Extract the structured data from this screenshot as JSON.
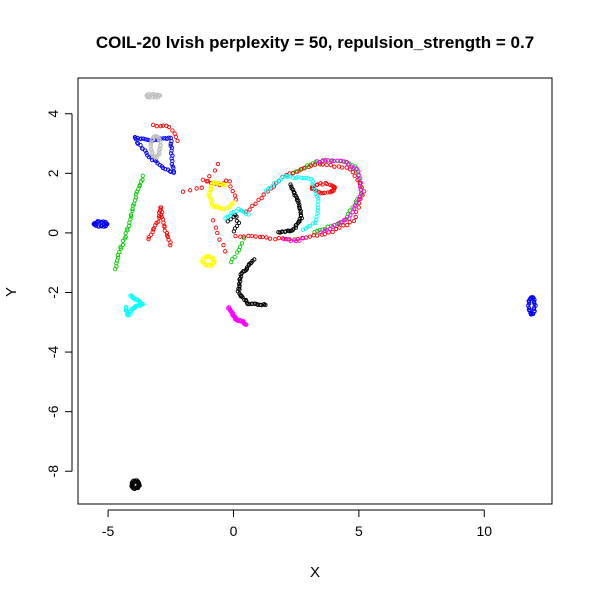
{
  "chart_data": {
    "type": "scatter",
    "title": "COIL-20 lvish perplexity = 50, repulsion_strength = 0.7",
    "xlabel": "X",
    "ylabel": "Y",
    "xlim": [
      -6.2,
      12.7
    ],
    "ylim": [
      -9.1,
      5.2
    ],
    "xticks": [
      -5,
      0,
      5,
      10
    ],
    "yticks": [
      4,
      2,
      0,
      -2,
      -4,
      -6,
      -8
    ],
    "grid": false,
    "legend": "none",
    "marker": "open-circle",
    "clusters": [
      {
        "color": "#000000",
        "shape": "ring",
        "cx": -3.9,
        "cy": -8.45,
        "rx": 0.15,
        "ry": 0.12,
        "n": 30
      },
      {
        "color": "#000000",
        "shape": "arc",
        "points": [
          [
            0.8,
            -0.9
          ],
          [
            0.3,
            -1.4
          ],
          [
            0.2,
            -2.0
          ],
          [
            0.6,
            -2.4
          ],
          [
            1.3,
            -2.4
          ]
        ],
        "n": 45
      },
      {
        "color": "#000000",
        "shape": "arc",
        "points": [
          [
            2.3,
            1.6
          ],
          [
            2.6,
            1.0
          ],
          [
            2.7,
            0.5
          ],
          [
            2.4,
            0.1
          ],
          [
            1.8,
            0.0
          ]
        ],
        "n": 40
      },
      {
        "color": "#000000",
        "shape": "arc",
        "points": [
          [
            -0.2,
            0.4
          ],
          [
            0.1,
            0.6
          ],
          [
            0.2,
            0.3
          ],
          [
            0.0,
            0.05
          ]
        ],
        "n": 10
      },
      {
        "color": "#0000FF",
        "shape": "ring",
        "cx": -5.3,
        "cy": 0.3,
        "rx": 0.25,
        "ry": 0.08,
        "n": 25
      },
      {
        "color": "#0000FF",
        "shape": "ring",
        "cx": 11.9,
        "cy": -2.45,
        "rx": 0.12,
        "ry": 0.28,
        "n": 30
      },
      {
        "color": "#0000FF",
        "shape": "poly",
        "points": [
          [
            -3.9,
            3.2
          ],
          [
            -3.3,
            3.1
          ],
          [
            -2.5,
            3.2
          ],
          [
            -2.4,
            2.0
          ],
          [
            -2.8,
            2.2
          ],
          [
            -3.4,
            2.6
          ],
          [
            -3.8,
            3.0
          ],
          [
            -3.9,
            3.2
          ]
        ],
        "n": 55
      },
      {
        "color": "#BEBEBE",
        "shape": "ring",
        "cx": -3.2,
        "cy": 4.6,
        "rx": 0.25,
        "ry": 0.05,
        "n": 18
      },
      {
        "color": "#BEBEBE",
        "shape": "ring",
        "cx": -3.1,
        "cy": 2.9,
        "rx": 0.18,
        "ry": 0.35,
        "n": 30
      },
      {
        "color": "#00CD00",
        "shape": "arc",
        "points": [
          [
            -4.7,
            -1.2
          ],
          [
            -4.6,
            -0.7
          ],
          [
            -4.3,
            -0.1
          ],
          [
            -4.1,
            0.5
          ],
          [
            -3.9,
            1.2
          ],
          [
            -3.6,
            1.9
          ]
        ],
        "n": 35
      },
      {
        "color": "#00CD00",
        "shape": "arc",
        "points": [
          [
            3.2,
            0.0
          ],
          [
            4.4,
            0.4
          ],
          [
            5.1,
            1.3
          ],
          [
            4.9,
            2.2
          ],
          [
            4.2,
            2.45
          ],
          [
            3.2,
            2.35
          ],
          [
            2.4,
            2.0
          ]
        ],
        "n": 50
      },
      {
        "color": "#00CD00",
        "shape": "arc",
        "points": [
          [
            -0.1,
            -1.0
          ],
          [
            0.2,
            -0.6
          ],
          [
            0.4,
            -0.2
          ]
        ],
        "n": 8
      },
      {
        "color": "#FF0000",
        "shape": "arc",
        "points": [
          [
            -3.4,
            -0.2
          ],
          [
            -3.0,
            0.4
          ],
          [
            -2.9,
            0.9
          ],
          [
            -2.8,
            0.3
          ],
          [
            -2.5,
            -0.4
          ]
        ],
        "n": 30
      },
      {
        "color": "#FF0000",
        "shape": "ring",
        "cx": 3.6,
        "cy": 1.5,
        "rx": 0.45,
        "ry": 0.15,
        "n": 30
      },
      {
        "color": "#FF0000",
        "shape": "arc",
        "points": [
          [
            -1.2,
            1.8
          ],
          [
            -0.6,
            1.6
          ],
          [
            -0.2,
            1.8
          ],
          [
            0.1,
            1.1
          ]
        ],
        "n": 12
      },
      {
        "color": "#FF0000",
        "shape": "arc",
        "points": [
          [
            -3.2,
            3.6
          ],
          [
            -2.6,
            3.6
          ],
          [
            -2.2,
            3.1
          ]
        ],
        "n": 10
      },
      {
        "color": "#FF0000",
        "shape": "arc",
        "points": [
          [
            -2.0,
            1.4
          ],
          [
            -1.3,
            1.5
          ],
          [
            -0.6,
            2.3
          ]
        ],
        "n": 8
      },
      {
        "color": "#FF0000",
        "shape": "arc",
        "points": [
          [
            0.5,
            0.7
          ],
          [
            2.0,
            1.9
          ],
          [
            3.3,
            2.3
          ],
          [
            4.6,
            2.2
          ],
          [
            5.2,
            1.4
          ],
          [
            4.8,
            0.4
          ],
          [
            3.8,
            0.0
          ],
          [
            2.6,
            -0.2
          ],
          [
            1.6,
            -0.2
          ],
          [
            0.8,
            -0.1
          ],
          [
            0.1,
            -0.1
          ]
        ],
        "n": 75
      },
      {
        "color": "#FF0000",
        "shape": "arc",
        "points": [
          [
            -0.8,
            0.4
          ],
          [
            -0.5,
            -0.3
          ],
          [
            -0.3,
            -0.6
          ]
        ],
        "n": 6
      },
      {
        "color": "#00FFFF",
        "shape": "poly",
        "points": [
          [
            -4.1,
            -2.1
          ],
          [
            -3.6,
            -2.4
          ],
          [
            -4.0,
            -2.5
          ],
          [
            -4.2,
            -2.8
          ],
          [
            -4.3,
            -2.5
          ]
        ],
        "n": 40
      },
      {
        "color": "#00FFFF",
        "shape": "arc",
        "points": [
          [
            1.3,
            1.4
          ],
          [
            2.0,
            1.9
          ],
          [
            3.1,
            1.8
          ],
          [
            3.4,
            1.1
          ],
          [
            3.3,
            0.4
          ],
          [
            2.8,
            0.1
          ]
        ],
        "n": 40
      },
      {
        "color": "#00FFFF",
        "shape": "arc",
        "points": [
          [
            -0.3,
            0.5
          ],
          [
            0.2,
            0.8
          ],
          [
            0.6,
            0.6
          ]
        ],
        "n": 12
      },
      {
        "color": "#FFFF00",
        "shape": "arc",
        "points": [
          [
            -0.3,
            1.6
          ],
          [
            -0.8,
            1.7
          ],
          [
            -1.0,
            1.3
          ],
          [
            -0.8,
            0.9
          ],
          [
            -0.3,
            0.8
          ],
          [
            0.0,
            1.0
          ]
        ],
        "n": 40
      },
      {
        "color": "#FFFF00",
        "shape": "ring",
        "cx": -1.0,
        "cy": -0.95,
        "rx": 0.22,
        "ry": 0.15,
        "n": 25
      },
      {
        "color": "#FF00FF",
        "shape": "arc",
        "points": [
          [
            -0.2,
            -2.5
          ],
          [
            0.1,
            -2.9
          ],
          [
            0.4,
            -3.0
          ],
          [
            0.5,
            -3.1
          ]
        ],
        "n": 40
      },
      {
        "color": "#FF00FF",
        "shape": "arc",
        "points": [
          [
            3.5,
            0.0
          ],
          [
            4.6,
            0.5
          ],
          [
            5.1,
            1.3
          ],
          [
            5.0,
            2.1
          ],
          [
            4.3,
            2.45
          ],
          [
            3.3,
            2.4
          ]
        ],
        "n": 40
      },
      {
        "color": "#FF00FF",
        "shape": "arc",
        "points": [
          [
            2.0,
            -0.2
          ],
          [
            2.4,
            -0.3
          ],
          [
            2.8,
            -0.2
          ]
        ],
        "n": 6
      }
    ]
  }
}
